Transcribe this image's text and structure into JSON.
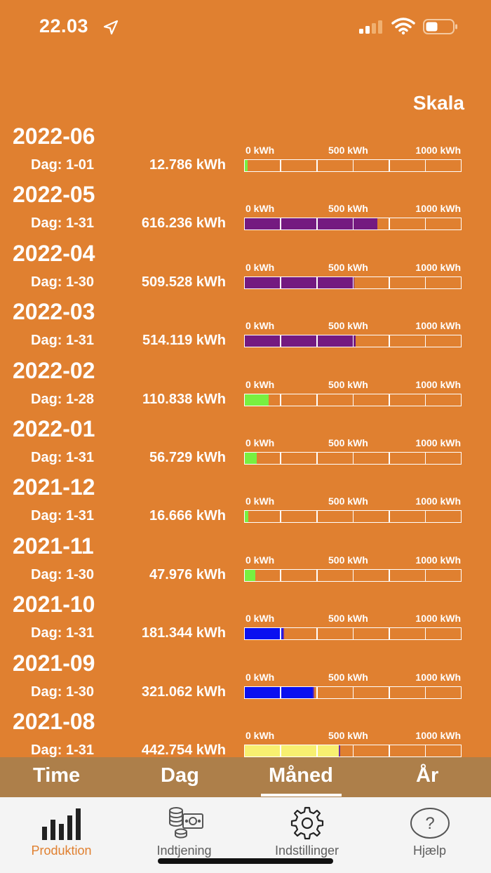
{
  "status_bar": {
    "time": "22.03",
    "icons": [
      "location-arrow-icon",
      "cellular-signal-icon",
      "wifi-icon",
      "battery-icon"
    ]
  },
  "scale_title": "Skala",
  "axis": {
    "min_label": "0 kWh",
    "mid_label": "500 kWh",
    "max_label": "1000 kWh",
    "max_value": 1000
  },
  "months": [
    {
      "month": "2022-06",
      "days": "Dag: 1-01",
      "energy": "12.786 kWh",
      "kwh": 12.786,
      "color": "#78f040"
    },
    {
      "month": "2022-05",
      "days": "Dag: 1-31",
      "energy": "616.236 kWh",
      "kwh": 616.236,
      "color": "#741a80"
    },
    {
      "month": "2022-04",
      "days": "Dag: 1-30",
      "energy": "509.528 kWh",
      "kwh": 509.528,
      "color": "#741a80"
    },
    {
      "month": "2022-03",
      "days": "Dag: 1-31",
      "energy": "514.119 kWh",
      "kwh": 514.119,
      "color": "#741a80"
    },
    {
      "month": "2022-02",
      "days": "Dag: 1-28",
      "energy": "110.838 kWh",
      "kwh": 110.838,
      "color": "#78f040"
    },
    {
      "month": "2022-01",
      "days": "Dag: 1-31",
      "energy": "56.729 kWh",
      "kwh": 56.729,
      "color": "#78f040"
    },
    {
      "month": "2021-12",
      "days": "Dag: 1-31",
      "energy": "16.666 kWh",
      "kwh": 16.666,
      "color": "#78f040"
    },
    {
      "month": "2021-11",
      "days": "Dag: 1-30",
      "energy": "47.976 kWh",
      "kwh": 47.976,
      "color": "#78f040"
    },
    {
      "month": "2021-10",
      "days": "Dag: 1-31",
      "energy": "181.344 kWh",
      "kwh": 181.344,
      "color": "#0a10f0"
    },
    {
      "month": "2021-09",
      "days": "Dag: 1-30",
      "energy": "321.062 kWh",
      "kwh": 321.062,
      "color": "#0a10f0"
    },
    {
      "month": "2021-08",
      "days": "Dag: 1-31",
      "energy": "442.754 kWh",
      "kwh": 442.754,
      "color": "#f8f070"
    }
  ],
  "period_tabs": [
    {
      "label": "Time",
      "active": false
    },
    {
      "label": "Dag",
      "active": false
    },
    {
      "label": "Måned",
      "active": true
    },
    {
      "label": "År",
      "active": false
    }
  ],
  "tab_bar": [
    {
      "label": "Produktion",
      "icon": "bar-chart-icon",
      "active": true
    },
    {
      "label": "Indtjening",
      "icon": "coins-banknote-icon",
      "active": false
    },
    {
      "label": "Indstillinger",
      "icon": "gear-icon",
      "active": false
    },
    {
      "label": "Hjælp",
      "icon": "question-mark-icon",
      "active": false
    }
  ],
  "colors": {
    "background": "#e08030",
    "period_tab_bar": "#ad7f4a",
    "tab_bar": "#f4f4f4",
    "active_tab": "#e08030",
    "inactive_tab": "#5e5e5e"
  }
}
